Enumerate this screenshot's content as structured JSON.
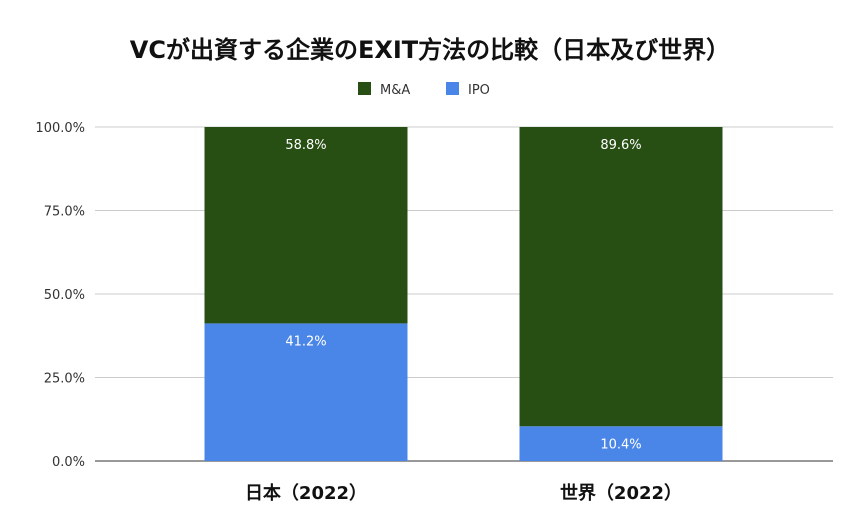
{
  "chart_data": {
    "type": "bar",
    "stacked": true,
    "title": "VCが出資する企業のEXIT方法の比較（日本及び世界）",
    "categories": [
      "日本（2022）",
      "世界（2022）"
    ],
    "series": [
      {
        "name": "IPO",
        "color": "#4a86e8",
        "values": [
          41.2,
          10.4
        ],
        "labels": [
          "41.2%",
          "10.4%"
        ]
      },
      {
        "name": "M&A",
        "color": "#274e13",
        "values": [
          58.8,
          89.6
        ],
        "labels": [
          "58.8%",
          "89.6%"
        ]
      }
    ],
    "legend_order": [
      "M&A",
      "IPO"
    ],
    "legend_position": "top",
    "xlabel": "",
    "ylabel": "",
    "ylim": [
      0,
      100
    ],
    "yticks": [
      0,
      25,
      50,
      75,
      100
    ],
    "ytick_labels": [
      "0.0%",
      "25.0%",
      "50.0%",
      "75.0%",
      "100.0%"
    ],
    "grid": true
  }
}
